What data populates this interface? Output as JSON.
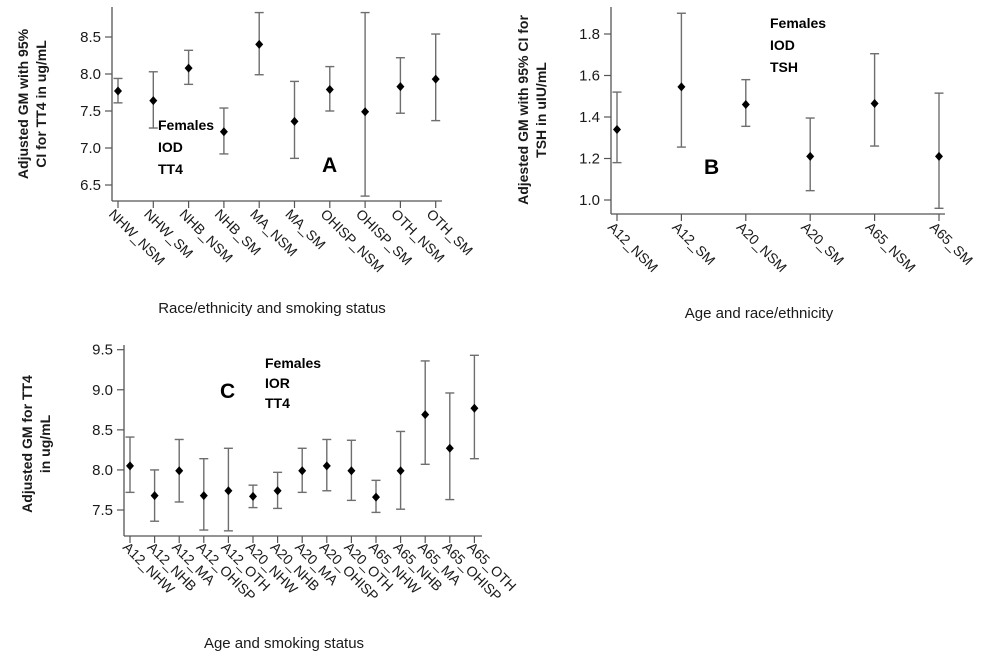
{
  "chart_data": [
    {
      "id": "A",
      "type": "scatter",
      "subtype": "point-with-error-bars",
      "panel_letter": "A",
      "annotation": [
        "Females",
        "IOD",
        "TT4"
      ],
      "xlabel": "Race/ethnicity and smoking status",
      "ylabel": [
        "Adjusted GM with 95%",
        "CI for TT4 in ug/mL"
      ],
      "ylim": [
        6.28,
        8.93
      ],
      "yticks": [
        6.5,
        7.0,
        7.5,
        8.0,
        8.5
      ],
      "ytick_labels": [
        "6.5",
        "7.0",
        "7.5",
        "8.0",
        "8.5"
      ],
      "categories": [
        "NHW_NSM",
        "NHW_SM",
        "NHB_NSM",
        "NHB_SM",
        "MA_NSM",
        "MA_SM",
        "OHISP_NSM",
        "OHISP_SM",
        "OTH_NSM",
        "OTH_SM"
      ],
      "values": [
        7.77,
        7.64,
        8.08,
        7.22,
        8.4,
        7.36,
        7.79,
        7.49,
        7.83,
        7.93
      ],
      "ci_lower": [
        7.61,
        7.27,
        7.86,
        6.92,
        7.99,
        6.86,
        7.5,
        6.35,
        7.47,
        7.37
      ],
      "ci_upper": [
        7.94,
        8.03,
        8.32,
        7.54,
        8.83,
        7.9,
        8.1,
        8.83,
        8.22,
        8.54
      ],
      "grid": false,
      "legend": null
    },
    {
      "id": "B",
      "type": "scatter",
      "subtype": "point-with-error-bars",
      "panel_letter": "B",
      "annotation": [
        "Females",
        "IOD",
        "TSH"
      ],
      "xlabel": "Age and race/ethnicity",
      "ylabel": [
        "Adjested GM with 95% CI for",
        "TSH in uIU/mL"
      ],
      "ylim": [
        0.93,
        1.93
      ],
      "yticks": [
        1.0,
        1.2,
        1.4,
        1.6,
        1.8
      ],
      "ytick_labels": [
        "1.0",
        "1.2",
        "1.4",
        "1.6",
        "1.8"
      ],
      "categories": [
        "A12_NSM",
        "A12_SM",
        "A20_NSM",
        "A20_SM",
        "A65_NSM",
        "A65_SM"
      ],
      "values": [
        1.34,
        1.545,
        1.46,
        1.21,
        1.465,
        1.21
      ],
      "ci_lower": [
        1.18,
        1.255,
        1.355,
        1.045,
        1.26,
        0.96
      ],
      "ci_upper": [
        1.52,
        1.9,
        1.58,
        1.395,
        1.705,
        1.515
      ],
      "grid": false,
      "legend": null
    },
    {
      "id": "C",
      "type": "scatter",
      "subtype": "point-with-error-bars",
      "panel_letter": "C",
      "annotation": [
        "Females",
        "IOR",
        "TT4"
      ],
      "xlabel": "Age and smoking status",
      "ylabel": [
        "Adjusted GM for TT4",
        "in ug/mL"
      ],
      "ylim": [
        7.17,
        9.56
      ],
      "yticks": [
        7.5,
        8.0,
        8.5,
        9.0,
        9.5
      ],
      "ytick_labels": [
        "7.5",
        "8.0",
        "8.5",
        "9.0",
        "9.5"
      ],
      "categories": [
        "A12_NHW",
        "A12_NHB",
        "A12_MA",
        "A12_OHISP",
        "A12_OTH",
        "A20_NHW",
        "A20_NHB",
        "A20_MA",
        "A20_OHISP",
        "A20_OTH",
        "A65_NHW",
        "A65_NHB",
        "A65_MA",
        "A65_OHISP",
        "A65_OTH"
      ],
      "values": [
        8.05,
        7.68,
        7.99,
        7.68,
        7.74,
        7.67,
        7.74,
        7.99,
        8.05,
        7.99,
        7.66,
        7.99,
        8.69,
        8.27,
        8.77
      ],
      "ci_lower": [
        7.72,
        7.36,
        7.6,
        7.25,
        7.24,
        7.53,
        7.52,
        7.72,
        7.74,
        7.62,
        7.47,
        7.51,
        8.07,
        7.63,
        8.14
      ],
      "ci_upper": [
        8.41,
        8.0,
        8.38,
        8.14,
        8.27,
        7.81,
        7.97,
        8.27,
        8.38,
        8.37,
        7.87,
        8.48,
        9.36,
        8.96,
        9.43
      ],
      "grid": false,
      "legend": null
    }
  ]
}
